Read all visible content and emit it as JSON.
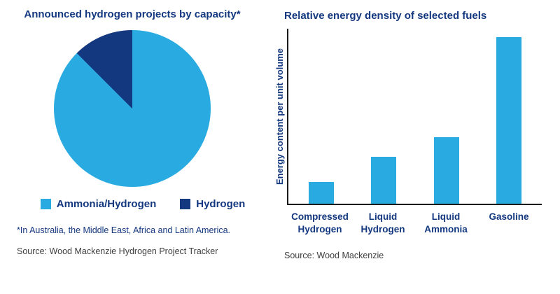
{
  "colors": {
    "accent_light": "#29ABE2",
    "accent_dark": "#14387F",
    "title_text": "#14387F",
    "source_text": "#3F3F3F",
    "axis": "#1a1a1a"
  },
  "chart_data": [
    {
      "type": "pie",
      "title": "Announced hydrogen projects by capacity*",
      "slices": [
        {
          "label": "Ammonia/Hydrogen",
          "value": 87.5,
          "color": "#29ABE2"
        },
        {
          "label": "Hydrogen",
          "value": 12.5,
          "color": "#14387F"
        }
      ],
      "legend_position": "bottom",
      "footnote": "*In Australia, the Middle East, Africa and Latin America.",
      "source": "Source: Wood Mackenzie Hydrogen Project Tracker"
    },
    {
      "type": "bar",
      "title": "Relative energy density of selected fuels",
      "categories": [
        "Compressed Hydrogen",
        "Liquid Hydrogen",
        "Liquid Ammonia",
        "Gasoline"
      ],
      "values": [
        13,
        28,
        40,
        100
      ],
      "ylabel": "Energy content per unit volume",
      "xlabel": "",
      "ylim": [
        0,
        105
      ],
      "grid": false,
      "yticks_visible": false,
      "bar_color": "#29ABE2",
      "source": "Source: Wood Mackenzie"
    }
  ]
}
